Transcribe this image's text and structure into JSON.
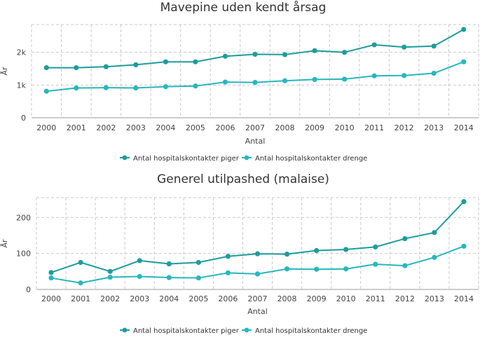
{
  "chart_data": [
    {
      "type": "line",
      "title": "Mavepine uden kendt årsag",
      "xlabel": "Antal",
      "ylabel": "År",
      "categories": [
        "2000",
        "2001",
        "2002",
        "2003",
        "2004",
        "2005",
        "2006",
        "2007",
        "2008",
        "2009",
        "2010",
        "2011",
        "2012",
        "2013",
        "2014"
      ],
      "y_ticks": [
        0,
        1000,
        2000
      ],
      "y_tick_labels": [
        "0",
        "1k",
        "2k"
      ],
      "ylim": [
        0,
        2850
      ],
      "grid": true,
      "legend_position": "bottom",
      "series": [
        {
          "name": "Antal hospitalskontakter piger",
          "color": "#1f9c9c",
          "values": [
            1530,
            1530,
            1560,
            1620,
            1710,
            1710,
            1880,
            1940,
            1930,
            2050,
            2000,
            2230,
            2160,
            2190,
            2700
          ]
        },
        {
          "name": "Antal hospitalskontakter drenge",
          "color": "#27b7bd",
          "values": [
            810,
            910,
            920,
            910,
            950,
            970,
            1090,
            1080,
            1130,
            1170,
            1180,
            1280,
            1290,
            1360,
            1710
          ]
        }
      ]
    },
    {
      "type": "line",
      "title": "Generel utilpashed (malaise)",
      "xlabel": "Antal",
      "ylabel": "År",
      "categories": [
        "2000",
        "2001",
        "2002",
        "2003",
        "2004",
        "2005",
        "2006",
        "2007",
        "2008",
        "2009",
        "2010",
        "2011",
        "2012",
        "2013",
        "2014"
      ],
      "y_ticks": [
        0,
        100,
        200
      ],
      "y_tick_labels": [
        "0",
        "100",
        "200"
      ],
      "ylim": [
        0,
        255
      ],
      "grid": true,
      "legend_position": "bottom",
      "series": [
        {
          "name": "Antal hospitalskontakter piger",
          "color": "#1f9c9c",
          "values": [
            47,
            75,
            50,
            80,
            71,
            75,
            92,
            99,
            98,
            108,
            111,
            118,
            141,
            158,
            244
          ]
        },
        {
          "name": "Antal hospitalskontakter drenge",
          "color": "#27b7bd",
          "values": [
            32,
            18,
            34,
            36,
            33,
            32,
            46,
            43,
            57,
            56,
            57,
            70,
            66,
            89,
            120
          ]
        }
      ]
    }
  ]
}
